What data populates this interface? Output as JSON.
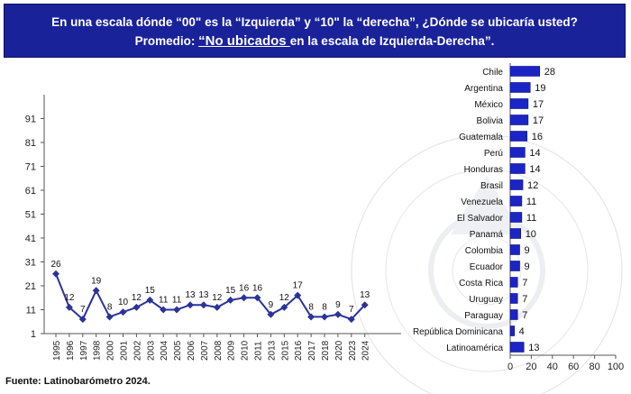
{
  "title": {
    "line1": "En una escala dónde “00\" es la “Izquierda” y “10\" la “derecha”, ¿Dónde se ubicaría usted?",
    "line2_prefix": "Promedio: ",
    "line2_highlight": "“No ubicados ",
    "line2_suffix": "en la escala de Izquierda-Derecha”."
  },
  "source": "Fuente: Latinobarómetro 2024.",
  "colors": {
    "accent": "#1a2299",
    "line": "#2b3399",
    "bar": "#1b24c4"
  },
  "chart_data": [
    {
      "type": "line",
      "title": "",
      "xlabel": "",
      "ylabel": "",
      "x": [
        "1995",
        "1996",
        "1997",
        "1998",
        "2000",
        "2001",
        "2002",
        "2003",
        "2004",
        "2005",
        "2006",
        "2007",
        "2008",
        "2009",
        "2010",
        "2011",
        "2013",
        "2015",
        "2016",
        "2017",
        "2018",
        "2020",
        "2023",
        "2024"
      ],
      "values": [
        26,
        12,
        7,
        19,
        8,
        10,
        12,
        15,
        11,
        11,
        13,
        13,
        12,
        15,
        16,
        16,
        9,
        12,
        17,
        8,
        8,
        9,
        7,
        13
      ],
      "data_labels": [
        "26",
        "12",
        "7",
        "19",
        "8",
        "10",
        "12",
        "15",
        "11",
        "11",
        "13",
        "13",
        "12",
        "15",
        "16",
        "16",
        "9",
        "12",
        "17",
        "8",
        "8",
        "9",
        "7",
        "13"
      ],
      "yticks": [
        "1",
        "11",
        "21",
        "31",
        "41",
        "51",
        "61",
        "71",
        "81",
        "91"
      ],
      "ylim": [
        1,
        101
      ],
      "grid": false,
      "legend": "none"
    },
    {
      "type": "bar",
      "orientation": "horizontal",
      "title": "",
      "xlabel": "",
      "ylabel": "",
      "categories": [
        "Chile",
        "Argentina",
        "México",
        "Bolivia",
        "Guatemala",
        "Perú",
        "Honduras",
        "Brasil",
        "Venezuela",
        "El Salvador",
        "Panamá",
        "Colombia",
        "Ecuador",
        "Costa Rica",
        "Uruguay",
        "Paraguay",
        "República Dominicana",
        "Latinoamérica"
      ],
      "values": [
        28,
        19,
        17,
        17,
        16,
        14,
        14,
        12,
        11,
        11,
        10,
        9,
        9,
        7,
        7,
        7,
        4,
        13
      ],
      "data_labels": [
        "28",
        "19",
        "17",
        "17",
        "16",
        "14",
        "14",
        "12",
        "11",
        "11",
        "10",
        "9",
        "9",
        "7",
        "7",
        "7",
        "4",
        "13"
      ],
      "xticks": [
        "0",
        "20",
        "40",
        "60",
        "80",
        "100"
      ],
      "xlim": [
        0,
        100
      ],
      "grid": false,
      "legend": "none"
    }
  ]
}
